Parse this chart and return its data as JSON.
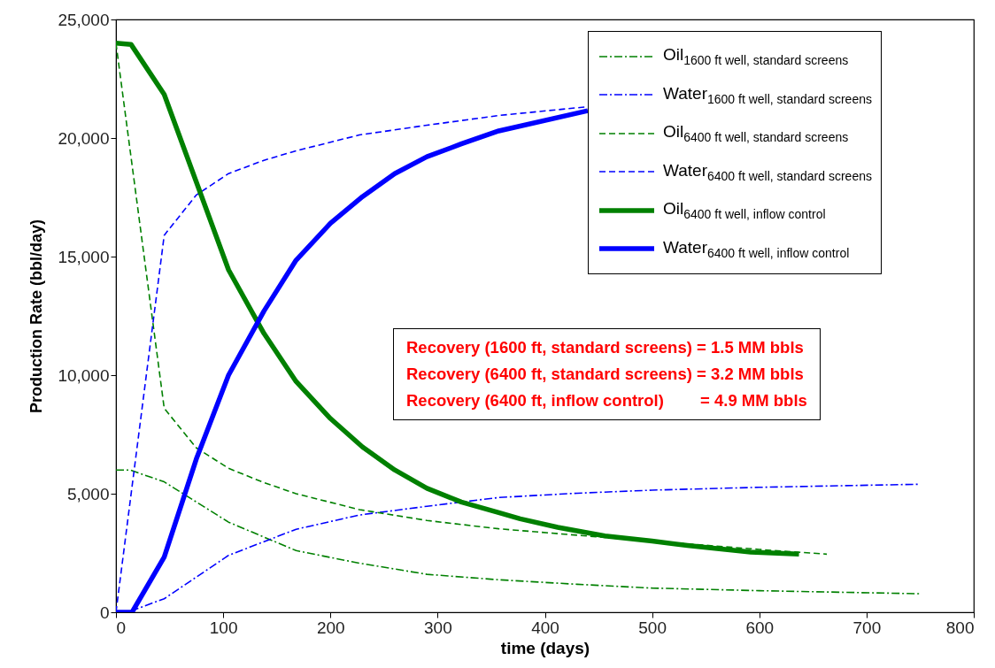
{
  "chart_data": {
    "type": "line",
    "xlabel": "time (days)",
    "ylabel": "Production Rate (bbl/day)",
    "xlim": [
      0,
      800
    ],
    "xticks": [
      0,
      100,
      200,
      300,
      400,
      500,
      600,
      700,
      800
    ],
    "ylim": [
      0,
      25000
    ],
    "yticks": [
      0,
      {
        "value": 5000,
        "label": "5,000"
      },
      {
        "value": 10000,
        "label": "10,000"
      },
      {
        "value": 15000,
        "label": "15,000"
      },
      {
        "value": 20000,
        "label": "20,000"
      },
      {
        "value": 25000,
        "label": "25,000"
      }
    ],
    "grid": false,
    "legend": "top right",
    "marker": "none",
    "annotations": [
      "Recovery (1600 ft, standard screens) = 1.5 MM bbls",
      "Recovery (6400 ft, standard screens) = 3.2 MM bbls",
      "Recovery (6400 ft, inflow control)        = 4.9 MM bbls"
    ],
    "series": [
      {
        "name": "Oil$_{1600 ft well, standard screens}$",
        "color": "#008000",
        "line_style": "dashdot",
        "x": [
          0,
          13,
          45,
          105,
          168,
          227,
          290,
          357,
          430,
          500,
          600,
          750
        ],
        "values": [
          6000,
          6000,
          5500,
          3800,
          2600,
          2070,
          1600,
          1370,
          1180,
          1020,
          910,
          780
        ]
      },
      {
        "name": "Water$_{1600 ft well, standard screens}$",
        "color": "#0000ff",
        "line_style": "dashdot",
        "x": [
          0,
          13,
          45,
          105,
          168,
          227,
          290,
          357,
          430,
          500,
          600,
          750
        ],
        "values": [
          0,
          40,
          570,
          2400,
          3500,
          4100,
          4470,
          4840,
          5020,
          5150,
          5270,
          5400
        ]
      },
      {
        "name": "Oil$_{6400 ft well, standard screens}$",
        "color": "#008000",
        "line_style": "dashed",
        "x": [
          0,
          45,
          75,
          105,
          138,
          168,
          227,
          290,
          357,
          430,
          500,
          600,
          663
        ],
        "values": [
          24000,
          8600,
          6930,
          6070,
          5470,
          5000,
          4330,
          3870,
          3520,
          3250,
          3000,
          2650,
          2450
        ]
      },
      {
        "name": "Water$_{6400 ft well, standard screens}$",
        "color": "#0000ff",
        "line_style": "dashed",
        "x": [
          0,
          45,
          75,
          105,
          138,
          168,
          227,
          290,
          357,
          440
        ],
        "values": [
          0,
          15900,
          17600,
          18500,
          19060,
          19460,
          20130,
          20540,
          20950,
          21320
        ]
      },
      {
        "name": "Oil$_{6400 ft well, inflow control}$",
        "color": "#008000",
        "line_style": "solid",
        "x": [
          0,
          14,
          45,
          105,
          138,
          168,
          200,
          230,
          260,
          290,
          322,
          357,
          377,
          412,
          456,
          500,
          533,
          592,
          637
        ],
        "values": [
          24000,
          23950,
          21840,
          14440,
          11760,
          9730,
          8170,
          6970,
          6000,
          5230,
          4650,
          4200,
          3940,
          3580,
          3220,
          3000,
          2820,
          2540,
          2450
        ]
      },
      {
        "name": "Water$_{6400 ft well, inflow control}$",
        "color": "#0000ff",
        "line_style": "solid",
        "x": [
          0,
          15,
          45,
          75,
          105,
          138,
          168,
          200,
          230,
          260,
          290,
          322,
          357,
          440
        ],
        "values": [
          0,
          0,
          2330,
          6470,
          10000,
          12700,
          14850,
          16400,
          17530,
          18500,
          19210,
          19750,
          20300,
          21150
        ]
      }
    ]
  }
}
